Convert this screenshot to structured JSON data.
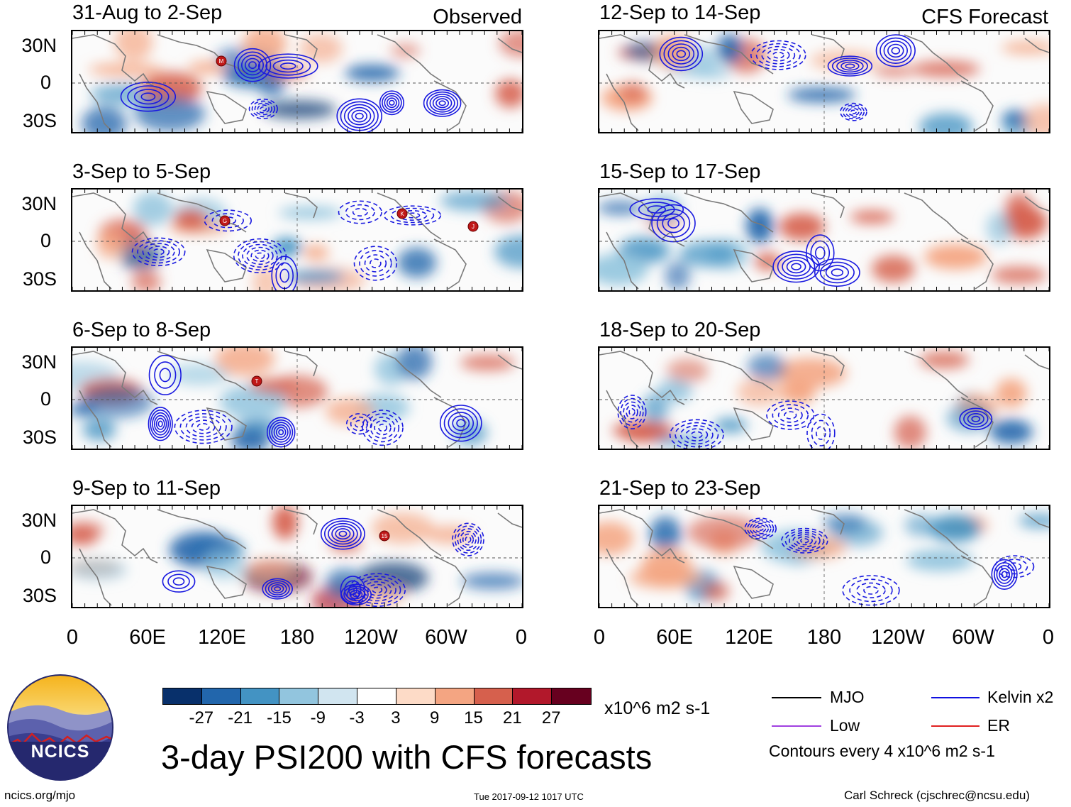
{
  "panels_left": [
    {
      "period": "31-Aug to 2-Sep",
      "tag": "Observed"
    },
    {
      "period": "3-Sep to 5-Sep",
      "tag": ""
    },
    {
      "period": "6-Sep to 8-Sep",
      "tag": ""
    },
    {
      "period": "9-Sep to 11-Sep",
      "tag": ""
    }
  ],
  "panels_right": [
    {
      "period": "12-Sep to 14-Sep",
      "tag": "CFS Forecast"
    },
    {
      "period": "15-Sep to 17-Sep",
      "tag": ""
    },
    {
      "period": "18-Sep to 20-Sep",
      "tag": ""
    },
    {
      "period": "21-Sep to 23-Sep",
      "tag": ""
    }
  ],
  "latitude_labels": [
    "30N",
    "0",
    "30S"
  ],
  "longitude_labels": [
    "0",
    "60E",
    "120E",
    "180",
    "120W",
    "60W",
    "0"
  ],
  "storm_markers": [
    {
      "panel": 0,
      "letter": "M"
    },
    {
      "panel": 1,
      "letter": "G"
    },
    {
      "panel": 1,
      "letter": "K"
    },
    {
      "panel": 1,
      "letter": "J"
    },
    {
      "panel": 2,
      "letter": "T"
    },
    {
      "panel": 3,
      "letter": "15"
    }
  ],
  "colorbar": {
    "colors": [
      "#08306b",
      "#2266ac",
      "#4393c3",
      "#92c5de",
      "#d1e5f0",
      "#ffffff",
      "#fddbc7",
      "#f4a582",
      "#d6604d",
      "#b2182b",
      "#67001f"
    ],
    "labels": [
      "-27",
      "-21",
      "-15",
      "-9",
      "-3",
      "3",
      "9",
      "15",
      "21",
      "27"
    ],
    "units": "x10^6 m2 s-1"
  },
  "legend": {
    "items": [
      {
        "label": "MJO",
        "color": "#000000"
      },
      {
        "label": "Kelvin x2",
        "color": "#1010e0"
      },
      {
        "label": "Low",
        "color": "#a040e0"
      },
      {
        "label": "ER",
        "color": "#e02020"
      }
    ],
    "note": "Contours every 4 x10^6 m2 s-1"
  },
  "main_title": "3-day PSI200 with CFS forecasts",
  "logo_text": "NCICS",
  "footer": {
    "url": "ncics.org/mjo",
    "timestamp": "Tue 2017-09-12 1017 UTC",
    "author": "Carl Schreck (cjschrec@ncsu.edu)"
  }
}
